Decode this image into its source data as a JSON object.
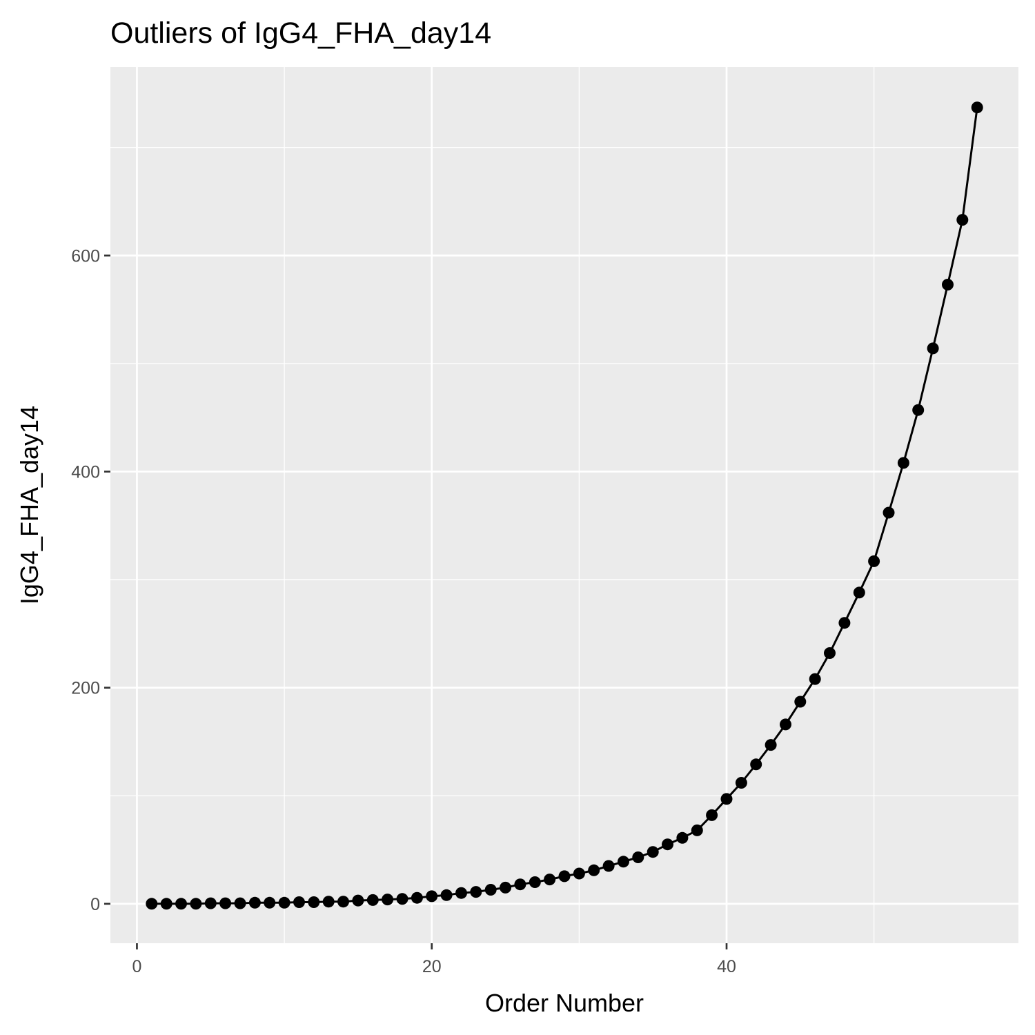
{
  "chart_data": {
    "type": "line",
    "title": "Outliers of IgG4_FHA_day14",
    "xlabel": "Order Number",
    "ylabel": "IgG4_FHA_day14",
    "xlim": [
      -1.8,
      59.8
    ],
    "ylim": [
      -36.5,
      774.5
    ],
    "x_ticks": [
      0,
      20,
      40
    ],
    "x_tick_labels": [
      "0",
      "20",
      "40"
    ],
    "x_minor_ticks": [
      10,
      30,
      50
    ],
    "y_ticks": [
      0,
      200,
      400,
      600
    ],
    "y_tick_labels": [
      "0",
      "200",
      "400",
      "600"
    ],
    "y_minor_ticks": [
      100,
      300,
      500,
      700
    ],
    "grid": true,
    "series": [
      {
        "color": "#000000",
        "marker": "circle",
        "x": [
          1,
          2,
          3,
          4,
          5,
          6,
          7,
          8,
          9,
          10,
          11,
          12,
          13,
          14,
          15,
          16,
          17,
          18,
          19,
          20,
          21,
          22,
          23,
          24,
          25,
          26,
          27,
          28,
          29,
          30,
          31,
          32,
          33,
          34,
          35,
          36,
          37,
          38,
          39,
          40,
          41,
          42,
          43,
          44,
          45,
          46,
          47,
          48,
          49,
          50,
          51,
          52,
          53,
          54,
          55,
          56,
          57
        ],
        "y": [
          0,
          0,
          0,
          0,
          0.5,
          0.5,
          0.5,
          1,
          1,
          1,
          1.5,
          1.5,
          2,
          2,
          3,
          3.5,
          4,
          4.5,
          5.5,
          7,
          8,
          10,
          11,
          13,
          15,
          18,
          20,
          22.5,
          25.5,
          28,
          31,
          35,
          39,
          43,
          48,
          55,
          61,
          68,
          82,
          97,
          112,
          129,
          147,
          166,
          187,
          208,
          232,
          260,
          288,
          317,
          362,
          408,
          457,
          514,
          573,
          633,
          737
        ]
      }
    ]
  }
}
